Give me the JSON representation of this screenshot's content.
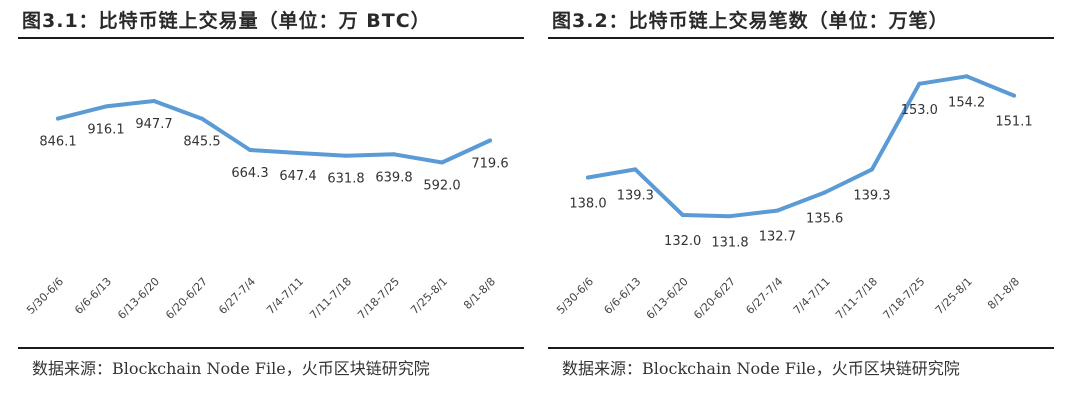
{
  "charts": [
    {
      "title": "图3.1：比特币链上交易量（单位：万 BTC）",
      "source": "数据来源：Blockchain Node File，火币区块链研究院",
      "chart_data": {
        "type": "line",
        "categories": [
          "5/30-6/6",
          "6/6-6/13",
          "6/13-6/20",
          "6/20-6/27",
          "6/27-7/4",
          "7/4-7/11",
          "7/11-7/18",
          "7/18-7/25",
          "7/25-8/1",
          "8/1-8/8"
        ],
        "values": [
          846.1,
          916.1,
          947.7,
          845.5,
          664.3,
          647.4,
          631.8,
          639.8,
          592.0,
          719.6
        ],
        "value_labels": [
          "846.1",
          "916.1",
          "947.7",
          "845.5",
          "664.3",
          "647.4",
          "631.8",
          "639.8",
          "592.0",
          "719.6"
        ],
        "ylim": [
          0,
          1300
        ],
        "line_color": "#5b9bd5",
        "grid": false,
        "legend": "none"
      }
    },
    {
      "title": "图3.2：比特币链上交易笔数（单位：万笔）",
      "source": "数据来源：Blockchain Node File，火币区块链研究院",
      "chart_data": {
        "type": "line",
        "categories": [
          "5/30-6/6",
          "6/6-6/13",
          "6/13-6/20",
          "6/20-6/27",
          "6/27-7/4",
          "7/4-7/11",
          "7/11-7/18",
          "7/18-7/25",
          "7/25-8/1",
          "8/1-8/8"
        ],
        "values": [
          138.0,
          139.3,
          132.0,
          131.8,
          132.7,
          135.6,
          139.3,
          153.0,
          154.2,
          151.1
        ],
        "value_labels": [
          "138.0",
          "139.3",
          "132.0",
          "131.8",
          "132.7",
          "135.6",
          "139.3",
          "153.0",
          "154.2",
          "151.1"
        ],
        "ylim": [
          124,
          160
        ],
        "line_color": "#5b9bd5",
        "grid": false,
        "legend": "none"
      }
    }
  ]
}
